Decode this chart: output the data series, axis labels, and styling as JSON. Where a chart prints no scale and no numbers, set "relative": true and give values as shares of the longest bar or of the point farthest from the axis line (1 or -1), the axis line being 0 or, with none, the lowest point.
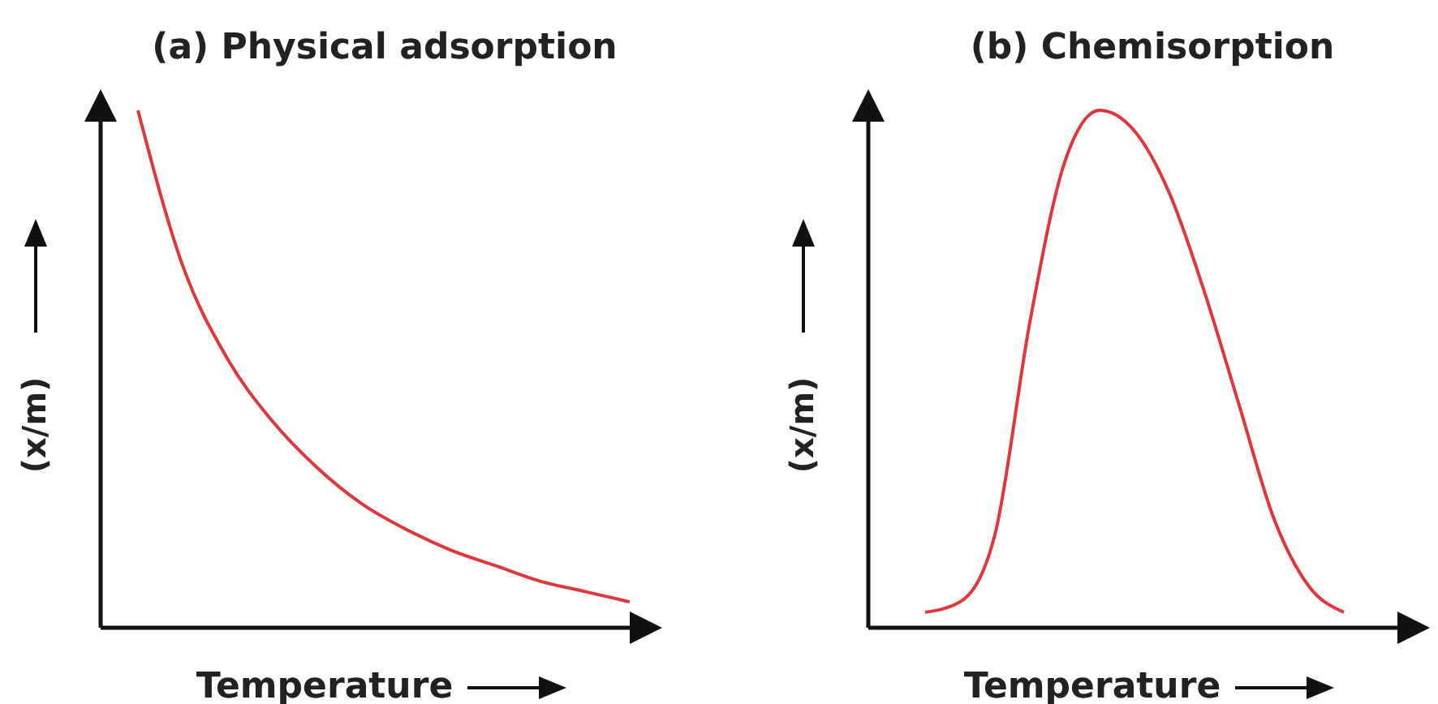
{
  "chart_data": [
    {
      "type": "line",
      "title": "(a) Physical adsorption",
      "xlabel": "Temperature",
      "ylabel": "(x/m)",
      "relative": true,
      "categories": [
        null,
        null,
        null,
        null,
        null,
        null,
        null,
        null,
        null,
        null,
        null,
        null
      ],
      "series": [
        {
          "color": "#e0363c",
          "values": [
            1.0,
            0.7,
            0.52,
            0.4,
            0.31,
            0.24,
            0.19,
            0.15,
            0.12,
            0.09,
            0.07,
            0.05
          ]
        }
      ]
    },
    {
      "type": "line",
      "title": "(b) Chemisorption",
      "xlabel": "Temperature",
      "ylabel": "(x/m)",
      "relative": true,
      "categories": [
        null,
        null,
        null,
        null,
        null,
        null,
        null,
        null,
        null,
        null,
        null,
        null,
        null
      ],
      "series": [
        {
          "color": "#e0363c",
          "values": [
            0.03,
            0.05,
            0.18,
            0.59,
            0.9,
            1.0,
            0.96,
            0.84,
            0.65,
            0.43,
            0.21,
            0.08,
            0.03
          ]
        }
      ]
    }
  ]
}
